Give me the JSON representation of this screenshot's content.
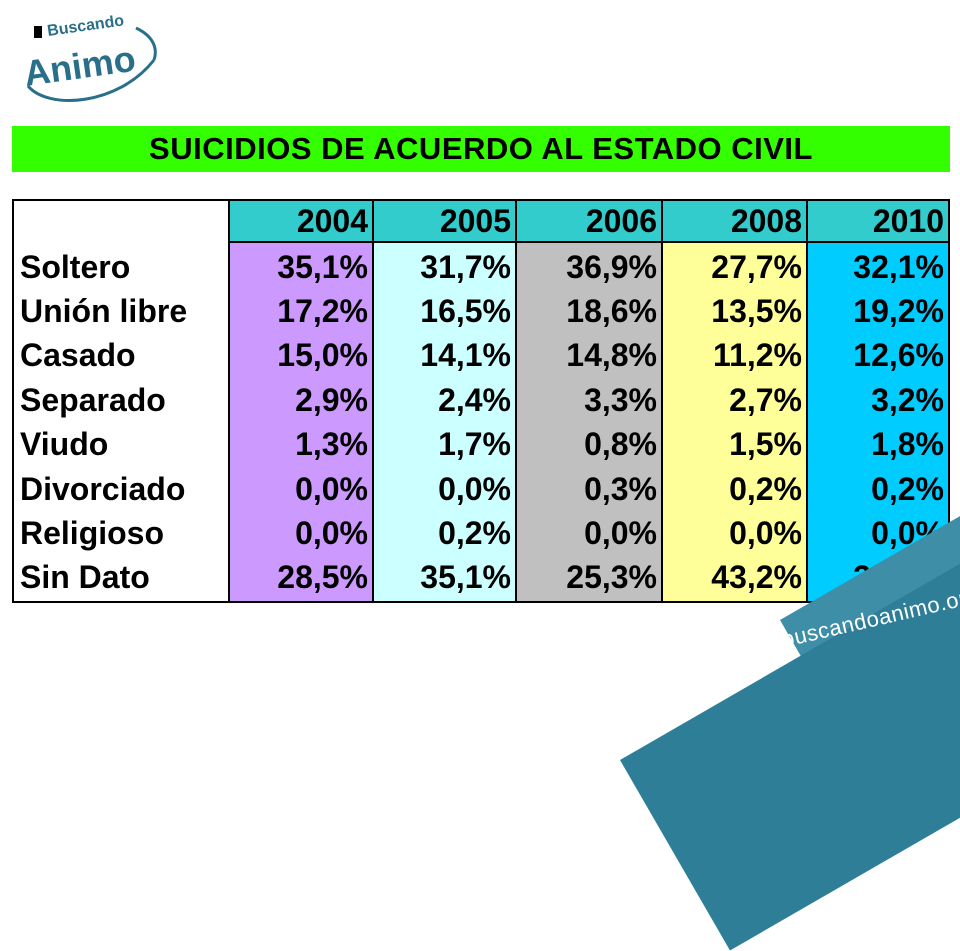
{
  "logo": {
    "line1": "Buscando",
    "line2": "Animo"
  },
  "title": "SUICIDIOS DE ACUERDO AL ESTADO CIVIL",
  "table": {
    "years": [
      "2004",
      "2005",
      "2006",
      "2008",
      "2010"
    ],
    "column_colors": [
      "#cc99ff",
      "#ccffff",
      "#c0c0c0",
      "#ffff99",
      "#00ccff"
    ],
    "header_color": "#33cccc",
    "rows": [
      {
        "label": "Soltero",
        "values": [
          "35,1%",
          "31,7%",
          "36,9%",
          "27,7%",
          "32,1%"
        ]
      },
      {
        "label": "Unión libre",
        "values": [
          "17,2%",
          "16,5%",
          "18,6%",
          "13,5%",
          "19,2%"
        ]
      },
      {
        "label": "Casado",
        "values": [
          "15,0%",
          "14,1%",
          "14,8%",
          "11,2%",
          "12,6%"
        ]
      },
      {
        "label": "Separado",
        "values": [
          "2,9%",
          "2,4%",
          "3,3%",
          "2,7%",
          "3,2%"
        ]
      },
      {
        "label": "Viudo",
        "values": [
          "1,3%",
          "1,7%",
          "0,8%",
          "1,5%",
          "1,8%"
        ]
      },
      {
        "label": "Divorciado",
        "values": [
          "0,0%",
          "0,0%",
          "0,3%",
          "0,2%",
          "0,2%"
        ]
      },
      {
        "label": "Religioso",
        "values": [
          "0,0%",
          "0,2%",
          "0,0%",
          "0,0%",
          "0,0%"
        ]
      },
      {
        "label": "Sin Dato",
        "values": [
          "28,5%",
          "35,1%",
          "25,3%",
          "43,2%",
          "30,9%"
        ]
      }
    ]
  },
  "footer_url": "www.buscandoanimo.org"
}
